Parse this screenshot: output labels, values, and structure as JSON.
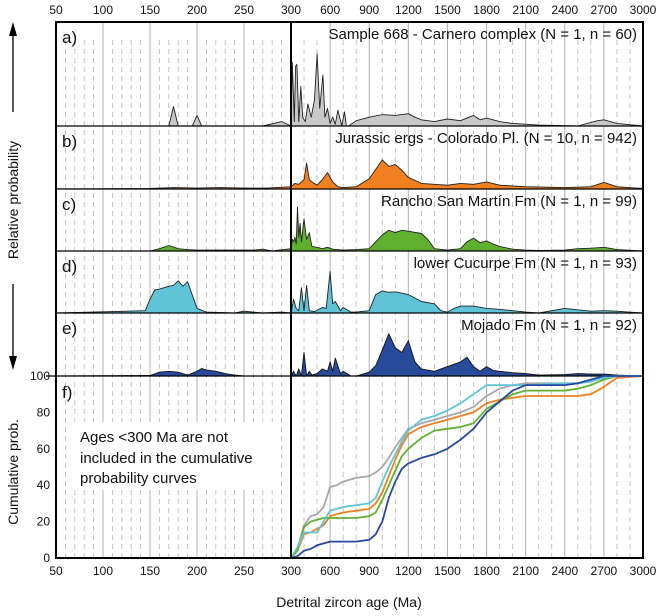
{
  "chart_data": {
    "type": "area",
    "xlabel": "Detrital zircon age (Ma)",
    "ylabel_top": "Relative probability",
    "ylabel_bottom": "Cumulative prob.",
    "x_scale": "broken: linear 50-300 (left), linear 300-3000 (right)",
    "x_ticks_left": [
      "50",
      "100",
      "150",
      "200",
      "250",
      "300"
    ],
    "x_ticks_right": [
      "600",
      "900",
      "1200",
      "1500",
      "1800",
      "2100",
      "2400",
      "2700",
      "3000"
    ],
    "y_ticks_cumulative": [
      "0",
      "20",
      "40",
      "60",
      "80",
      "100"
    ],
    "ylim_cumulative": [
      0,
      100
    ],
    "grid": true,
    "note": "Ages <300 Ma are not included in the cumulative probability curves",
    "panels": [
      {
        "letter": "a)",
        "title": "Sample 668 - Carnero complex (N = 1, n = 60)",
        "color": "#c8c8c8",
        "stroke": "#222222",
        "x": [
          50,
          170,
          175,
          180,
          195,
          200,
          205,
          270,
          290,
          300,
          310,
          325,
          335,
          345,
          360,
          375,
          390,
          410,
          430,
          455,
          480,
          500,
          520,
          545,
          560,
          580,
          600,
          620,
          640,
          660,
          690,
          710,
          725,
          745,
          760,
          800,
          900,
          1000,
          1100,
          1200,
          1250,
          1300,
          1400,
          1500,
          1600,
          1700,
          1750,
          1800,
          1900,
          2000,
          2100,
          2200,
          2500,
          2650,
          2700,
          2800,
          3000
        ],
        "y": [
          0,
          0,
          0.22,
          0,
          0,
          0.12,
          0,
          0,
          0.05,
          0,
          0.72,
          0.05,
          0.68,
          0.7,
          0.05,
          0.45,
          0.1,
          0.05,
          0.25,
          0.1,
          0.3,
          0.82,
          0.2,
          0.58,
          0.1,
          0.2,
          0.03,
          0.1,
          0.02,
          0.18,
          0,
          0.16,
          0,
          0,
          0.02,
          0.06,
          0.1,
          0.13,
          0.12,
          0.14,
          0.1,
          0.07,
          0.05,
          0.08,
          0.06,
          0.12,
          0.07,
          0.09,
          0.05,
          0.03,
          0.02,
          0.01,
          0,
          0.06,
          0.07,
          0.03,
          0
        ]
      },
      {
        "letter": "b)",
        "title": "Jurassic ergs - Colorado Pl. (N = 10, n = 942)",
        "color": "#f08020",
        "stroke": "#222222",
        "x": [
          50,
          150,
          175,
          200,
          225,
          250,
          275,
          300,
          330,
          360,
          400,
          420,
          440,
          460,
          500,
          540,
          580,
          620,
          660,
          700,
          800,
          900,
          1000,
          1050,
          1100,
          1150,
          1200,
          1300,
          1400,
          1500,
          1600,
          1700,
          1800,
          1900,
          2100,
          2400,
          2600,
          2700,
          2800,
          3000
        ],
        "y": [
          0,
          0.01,
          0.03,
          0.02,
          0.03,
          0.02,
          0.02,
          0.05,
          0.12,
          0.1,
          0.2,
          0.55,
          0.2,
          0.15,
          0.08,
          0.2,
          0.35,
          0.15,
          0.05,
          0.03,
          0.05,
          0.22,
          0.62,
          0.48,
          0.52,
          0.4,
          0.25,
          0.12,
          0.1,
          0.08,
          0.12,
          0.1,
          0.15,
          0.08,
          0.05,
          0.03,
          0.05,
          0.14,
          0.05,
          0.01
        ]
      },
      {
        "letter": "c)",
        "title": "Rancho San Martín Fm (N = 1, n = 99)",
        "color": "#60b030",
        "stroke": "#222222",
        "x": [
          50,
          150,
          160,
          170,
          180,
          190,
          200,
          230,
          260,
          270,
          280,
          300,
          310,
          320,
          330,
          340,
          350,
          360,
          370,
          380,
          400,
          420,
          440,
          460,
          500,
          540,
          580,
          620,
          700,
          800,
          900,
          1000,
          1050,
          1100,
          1150,
          1200,
          1300,
          1350,
          1400,
          1500,
          1600,
          1650,
          1700,
          1750,
          1800,
          1850,
          1900,
          2000,
          2100,
          2200,
          2400,
          2500,
          2600,
          2700,
          2800,
          3000
        ],
        "y": [
          0,
          0,
          0.05,
          0.12,
          0.05,
          0.03,
          0.02,
          0.02,
          0.02,
          0.04,
          0,
          0.05,
          0.25,
          0.2,
          0.3,
          0.15,
          0.95,
          0.3,
          0.6,
          0.2,
          0.7,
          0.25,
          0.4,
          0.1,
          0.08,
          0.05,
          0.08,
          0.04,
          0.02,
          0.03,
          0.05,
          0.35,
          0.45,
          0.4,
          0.45,
          0.43,
          0.38,
          0.25,
          0.05,
          0.02,
          0.05,
          0.2,
          0.28,
          0.18,
          0.22,
          0.15,
          0.1,
          0.04,
          0.02,
          0.01,
          0.02,
          0.05,
          0.06,
          0.08,
          0.03,
          0
        ]
      },
      {
        "letter": "d)",
        "title": "lower Cucurpe Fm (N = 1, n = 93)",
        "color": "#60c4d8",
        "stroke": "#222222",
        "x": [
          50,
          145,
          150,
          155,
          160,
          165,
          170,
          175,
          180,
          185,
          190,
          200,
          210,
          240,
          250,
          270,
          290,
          300,
          320,
          340,
          360,
          380,
          400,
          420,
          440,
          480,
          540,
          570,
          600,
          620,
          640,
          680,
          700,
          760,
          800,
          900,
          950,
          1000,
          1050,
          1100,
          1200,
          1300,
          1400,
          1450,
          1500,
          1550,
          1600,
          1700,
          1800,
          1900,
          2000,
          2100,
          2200,
          2400,
          2600,
          2700,
          2800,
          3000
        ],
        "y": [
          0,
          0.05,
          0.3,
          0.5,
          0.52,
          0.55,
          0.58,
          0.6,
          0.7,
          0.58,
          0.68,
          0.1,
          0.02,
          0,
          0.04,
          0,
          0.02,
          0,
          0.3,
          0.1,
          0.05,
          0.55,
          0.05,
          0.6,
          0.05,
          0.03,
          0.12,
          0.1,
          0.9,
          0.2,
          0.25,
          0.05,
          0.12,
          0.02,
          0.02,
          0.05,
          0.4,
          0.48,
          0.45,
          0.46,
          0.4,
          0.25,
          0.2,
          0.05,
          0.02,
          0.1,
          0.15,
          0.15,
          0.1,
          0.08,
          0.05,
          0.02,
          0,
          0.1,
          0.04,
          0.05,
          0.04,
          0
        ]
      },
      {
        "letter": "e)",
        "title": "Mojado Fm (N = 1, n = 92)",
        "color": "#284a9a",
        "stroke": "#111111",
        "x": [
          50,
          150,
          160,
          170,
          180,
          190,
          200,
          205,
          210,
          220,
          230,
          240,
          250,
          300,
          320,
          340,
          360,
          380,
          400,
          420,
          440,
          460,
          500,
          540,
          580,
          600,
          620,
          640,
          680,
          700,
          760,
          800,
          900,
          950,
          1000,
          1050,
          1100,
          1150,
          1200,
          1250,
          1300,
          1400,
          1500,
          1600,
          1650,
          1700,
          1750,
          1800,
          1850,
          1900,
          2000,
          2100,
          2200,
          2400,
          2500,
          2600,
          2700,
          2800,
          3000
        ],
        "y": [
          0,
          0.01,
          0.08,
          0.1,
          0.08,
          0.02,
          0.1,
          0.16,
          0.13,
          0.1,
          0.05,
          0.02,
          0,
          0,
          0.1,
          0,
          0.15,
          0,
          0.5,
          0,
          0.1,
          0.02,
          0.05,
          0.15,
          0.1,
          0.3,
          0.1,
          0.38,
          0.05,
          0.1,
          0,
          0,
          0.08,
          0.22,
          0.55,
          0.9,
          0.6,
          0.5,
          0.75,
          0.3,
          0.15,
          0.1,
          0.2,
          0.3,
          0.4,
          0.2,
          0.1,
          0.2,
          0.12,
          0.1,
          0.07,
          0.05,
          0.02,
          0.03,
          0.05,
          0.04,
          0.04,
          0.02,
          0
        ]
      }
    ],
    "cumulative": {
      "x": [
        300,
        350,
        400,
        450,
        500,
        550,
        600,
        650,
        700,
        800,
        900,
        950,
        1000,
        1050,
        1100,
        1150,
        1200,
        1300,
        1400,
        1500,
        1600,
        1700,
        1800,
        1900,
        2000,
        2100,
        2400,
        2500,
        2600,
        2700,
        2800,
        3000
      ],
      "series": [
        {
          "name": "Sample 668 - Carnero complex",
          "color": "#a8a8a8",
          "y": [
            0,
            5,
            18,
            23,
            24,
            28,
            39,
            40,
            42,
            44,
            45,
            47,
            50,
            55,
            61,
            66,
            71,
            74,
            76,
            78,
            80,
            83,
            89,
            93,
            95,
            96,
            96,
            96,
            97,
            99,
            100,
            100
          ]
        },
        {
          "name": "Jurassic ergs - Colorado Pl.",
          "color": "#f08020",
          "y": [
            0,
            4,
            13,
            14,
            16,
            18,
            23,
            24,
            25,
            26,
            27,
            30,
            36,
            45,
            54,
            62,
            68,
            72,
            74,
            76,
            78,
            80,
            85,
            87,
            88,
            89,
            89,
            89,
            90,
            94,
            99,
            100
          ]
        },
        {
          "name": "Rancho San Martín Fm",
          "color": "#60b030",
          "y": [
            0,
            4,
            17,
            20,
            21,
            22,
            22,
            22,
            22,
            22,
            23,
            25,
            32,
            40,
            48,
            56,
            60,
            66,
            70,
            71,
            72,
            74,
            82,
            86,
            90,
            92,
            92,
            93,
            95,
            98,
            100,
            100
          ]
        },
        {
          "name": "lower Cucurpe Fm",
          "color": "#60c4d8",
          "y": [
            0,
            6,
            14,
            14,
            14,
            20,
            26,
            27,
            28,
            29,
            30,
            33,
            42,
            50,
            57,
            64,
            70,
            76,
            78,
            81,
            85,
            90,
            95,
            95,
            95,
            95,
            96,
            96,
            97,
            99,
            100,
            100
          ]
        },
        {
          "name": "Mojado Fm",
          "color": "#2848a0",
          "y": [
            0,
            1,
            4,
            5,
            7,
            8,
            9,
            9,
            9,
            9,
            10,
            13,
            20,
            33,
            42,
            49,
            52,
            55,
            57,
            60,
            65,
            71,
            80,
            86,
            92,
            95,
            95,
            96,
            98,
            100,
            100,
            100
          ]
        }
      ]
    }
  }
}
